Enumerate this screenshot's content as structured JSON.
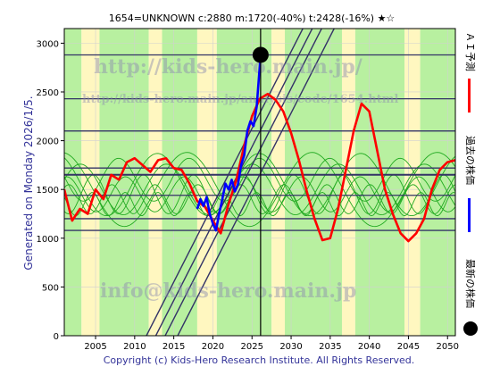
{
  "header": {
    "title": "1654=UNKNOWN    c:2880  m:1720(-40%)  t:2428(-16%)  ★☆"
  },
  "side_label": "Generated on Monday 2026/1/5.",
  "footer": "Copyright (c) Kids-Hero Research Institute. All Rights Reserved.",
  "watermarks": [
    "http://kids-hero.main.jp/",
    "http://kids-hero.main.jp/analysis/code/1654.html",
    "info@kids-hero.main.jp"
  ],
  "legend": [
    {
      "label": "ＡＩ予測",
      "color": "#ff0000",
      "kind": "line"
    },
    {
      "label": "過去の株価",
      "color": "#0000ff",
      "kind": "line"
    },
    {
      "label": "最新の株価",
      "color": "#000000",
      "kind": "dot"
    }
  ],
  "chart_data": {
    "type": "line",
    "title": "1654=UNKNOWN    c:2880  m:1720(-40%)  t:2428(-16%)  ★☆",
    "xlim": [
      2001,
      2051
    ],
    "ylim": [
      0,
      3150
    ],
    "x_ticks": [
      2005,
      2010,
      2015,
      2020,
      2025,
      2030,
      2035,
      2040,
      2045,
      2050
    ],
    "y_ticks": [
      0,
      500,
      1000,
      1500,
      2000,
      2500,
      3000
    ],
    "grid": true,
    "horizontal_levels": [
      2880,
      2430,
      2100,
      1720,
      1650,
      1440,
      1200,
      1080
    ],
    "current_year_marker": 2026.1,
    "latest_price": {
      "x": 2026.1,
      "y": 2880
    },
    "colors": {
      "ai_forecast": "#ff0000",
      "past_price": "#0000ff",
      "cycles": "#22aa22",
      "levels": "#333366",
      "trend": "#333366",
      "band_green": "#b8f0a0",
      "band_yellow": "#fff7c0"
    },
    "bands": [
      {
        "from": 2001,
        "to": 2003.2,
        "color": "band_green"
      },
      {
        "from": 2003.2,
        "to": 2005.5,
        "color": "band_yellow"
      },
      {
        "from": 2005.5,
        "to": 2011.8,
        "color": "band_green"
      },
      {
        "from": 2011.8,
        "to": 2013.5,
        "color": "band_yellow"
      },
      {
        "from": 2013.5,
        "to": 2018.0,
        "color": "band_green"
      },
      {
        "from": 2018.0,
        "to": 2020.5,
        "color": "band_yellow"
      },
      {
        "from": 2020.5,
        "to": 2027.5,
        "color": "band_green"
      },
      {
        "from": 2027.5,
        "to": 2029.2,
        "color": "band_yellow"
      },
      {
        "from": 2029.2,
        "to": 2036.5,
        "color": "band_green"
      },
      {
        "from": 2036.5,
        "to": 2038.2,
        "color": "band_yellow"
      },
      {
        "from": 2038.2,
        "to": 2044.5,
        "color": "band_green"
      },
      {
        "from": 2044.5,
        "to": 2046.5,
        "color": "band_yellow"
      },
      {
        "from": 2046.5,
        "to": 2051,
        "color": "band_green"
      }
    ],
    "series": [
      {
        "key": "ai_forecast",
        "values": [
          [
            2001,
            1500
          ],
          [
            2002,
            1180
          ],
          [
            2003,
            1300
          ],
          [
            2004,
            1250
          ],
          [
            2005,
            1500
          ],
          [
            2006,
            1400
          ],
          [
            2007,
            1650
          ],
          [
            2008,
            1600
          ],
          [
            2009,
            1780
          ],
          [
            2010,
            1820
          ],
          [
            2011,
            1750
          ],
          [
            2012,
            1680
          ],
          [
            2013,
            1800
          ],
          [
            2014,
            1820
          ],
          [
            2015,
            1720
          ],
          [
            2016,
            1700
          ],
          [
            2017,
            1560
          ],
          [
            2018,
            1380
          ],
          [
            2019,
            1320
          ],
          [
            2020,
            1180
          ],
          [
            2021,
            1050
          ],
          [
            2022,
            1350
          ],
          [
            2023,
            1600
          ],
          [
            2024,
            1950
          ],
          [
            2025,
            2250
          ],
          [
            2026,
            2430
          ],
          [
            2027,
            2480
          ],
          [
            2028,
            2420
          ],
          [
            2029,
            2300
          ],
          [
            2030,
            2080
          ],
          [
            2031,
            1800
          ],
          [
            2032,
            1480
          ],
          [
            2033,
            1200
          ],
          [
            2034,
            980
          ],
          [
            2035,
            1000
          ],
          [
            2036,
            1300
          ],
          [
            2037,
            1700
          ],
          [
            2038,
            2100
          ],
          [
            2039,
            2380
          ],
          [
            2040,
            2300
          ],
          [
            2041,
            1900
          ],
          [
            2042,
            1500
          ],
          [
            2043,
            1250
          ],
          [
            2044,
            1050
          ],
          [
            2045,
            970
          ],
          [
            2046,
            1050
          ],
          [
            2047,
            1200
          ],
          [
            2048,
            1500
          ],
          [
            2049,
            1700
          ],
          [
            2050,
            1780
          ],
          [
            2051,
            1800
          ]
        ]
      },
      {
        "key": "past_price",
        "values": [
          [
            2018.0,
            1300
          ],
          [
            2018.4,
            1400
          ],
          [
            2018.8,
            1330
          ],
          [
            2019.2,
            1420
          ],
          [
            2019.6,
            1250
          ],
          [
            2020.0,
            1150
          ],
          [
            2020.4,
            1080
          ],
          [
            2020.8,
            1250
          ],
          [
            2021.2,
            1400
          ],
          [
            2021.6,
            1560
          ],
          [
            2022.0,
            1500
          ],
          [
            2022.4,
            1600
          ],
          [
            2022.8,
            1480
          ],
          [
            2023.2,
            1550
          ],
          [
            2023.6,
            1750
          ],
          [
            2024.0,
            1850
          ],
          [
            2024.4,
            2100
          ],
          [
            2024.8,
            2200
          ],
          [
            2025.2,
            2150
          ],
          [
            2025.6,
            2350
          ],
          [
            2026.1,
            2880
          ]
        ]
      }
    ],
    "cycle_lines": [
      {
        "base": 1500,
        "amp": 260,
        "period": 11.0,
        "phase": 0.4
      },
      {
        "base": 1450,
        "amp": 180,
        "period": 7.5,
        "phase": 1.3
      },
      {
        "base": 1550,
        "amp": 320,
        "period": 13.0,
        "phase": 2.1
      },
      {
        "base": 1400,
        "amp": 150,
        "period": 5.5,
        "phase": 0.9
      },
      {
        "base": 1600,
        "amp": 220,
        "period": 9.0,
        "phase": 3.0
      },
      {
        "base": 1350,
        "amp": 120,
        "period": 4.2,
        "phase": 2.5
      },
      {
        "base": 1500,
        "amp": 380,
        "period": 16.0,
        "phase": 1.7
      },
      {
        "base": 1450,
        "amp": 200,
        "period": 6.4,
        "phase": 4.2
      }
    ],
    "trend_lines": [
      [
        [
          2011.5,
          0
        ],
        [
          2031.5,
          3150
        ]
      ],
      [
        [
          2012.7,
          0
        ],
        [
          2032.7,
          3150
        ]
      ],
      [
        [
          2013.9,
          0
        ],
        [
          2033.9,
          3150
        ]
      ],
      [
        [
          2015.5,
          0
        ],
        [
          2035.5,
          3150
        ]
      ]
    ]
  }
}
